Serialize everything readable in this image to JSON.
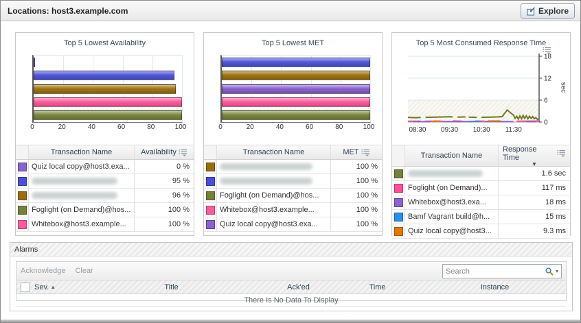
{
  "header": {
    "title": "Locations: host3.example.com",
    "explore_label": "Explore"
  },
  "panels": [
    {
      "title": "Top 5 Lowest Availability",
      "table": {
        "name_header": "Transaction Name",
        "value_header": "Availability",
        "sorted_desc": false,
        "rows": [
          {
            "color": "#8a63cc",
            "name": "Quiz local copy@host3.exa...",
            "redacted": false,
            "value": "0 %"
          },
          {
            "color": "#4a50d6",
            "name": "",
            "redacted": true,
            "value": "95 %"
          },
          {
            "color": "#9a6d10",
            "name": "",
            "redacted": true,
            "value": "96 %"
          },
          {
            "color": "#75803a",
            "name": "Foglight (on Demand)@hos...",
            "redacted": false,
            "value": "100 %"
          },
          {
            "color": "#ff5c9e",
            "name": "Whitebox@host3.example...",
            "redacted": false,
            "value": "100 %"
          }
        ]
      }
    },
    {
      "title": "Top 5 Lowest MET",
      "table": {
        "name_header": "Transaction Name",
        "value_header": "MET",
        "sorted_desc": false,
        "rows": [
          {
            "color": "#9a6d10",
            "name": "",
            "redacted": true,
            "value": "100 %"
          },
          {
            "color": "#4a50d6",
            "name": "",
            "redacted": true,
            "value": "100 %"
          },
          {
            "color": "#75803a",
            "name": "Foglight (on Demand)@hos...",
            "redacted": false,
            "value": "100 %"
          },
          {
            "color": "#ff5c9e",
            "name": "Whitebox@host3.example...",
            "redacted": false,
            "value": "100 %"
          },
          {
            "color": "#8a63cc",
            "name": "Quiz local copy@host3.exa...",
            "redacted": false,
            "value": "100 %"
          }
        ]
      }
    },
    {
      "title": "Top 5 Most Consumed Response Time",
      "table": {
        "name_header": "Transaction Name",
        "value_header": "Response Time",
        "sorted_desc": true,
        "rows": [
          {
            "color": "#75803a",
            "name": "",
            "redacted": true,
            "value": "1.6 sec"
          },
          {
            "color": "#ff4f96",
            "name": "Foglight (on Demand)...",
            "redacted": false,
            "value": "117 ms"
          },
          {
            "color": "#8a63cc",
            "name": "Whitebox@host3.exa...",
            "redacted": false,
            "value": "18 ms"
          },
          {
            "color": "#2a8fe8",
            "name": "Bamf Vagrant build@h...",
            "redacted": false,
            "value": "15 ms"
          },
          {
            "color": "#e5780a",
            "name": "Quiz local copy@host3...",
            "redacted": false,
            "value": "9.3 ms"
          }
        ]
      }
    }
  ],
  "chart_data": [
    {
      "type": "bar",
      "title": "Top 5 Lowest Availability",
      "orientation": "horizontal",
      "xlabel": "",
      "ylabel": "",
      "xlim": [
        0,
        100
      ],
      "ticks": [
        0,
        20,
        40,
        60,
        80,
        100
      ],
      "grid": true,
      "bars": [
        {
          "label": "Quiz local copy@host3.exa...",
          "value": 0,
          "color": "#8a63cc"
        },
        {
          "label": "(redacted)",
          "value": 95,
          "color": "#5156d8"
        },
        {
          "label": "(redacted)",
          "value": 96,
          "color": "#a07415"
        },
        {
          "label": "Whitebox@host3.example...",
          "value": 100,
          "color": "#ff5c9e"
        },
        {
          "label": "Foglight (on Demand)@hos...",
          "value": 100,
          "color": "#7d8840"
        }
      ]
    },
    {
      "type": "bar",
      "title": "Top 5 Lowest MET",
      "orientation": "horizontal",
      "xlabel": "",
      "ylabel": "",
      "xlim": [
        0,
        100
      ],
      "ticks": [
        0,
        20,
        40,
        60,
        80,
        100
      ],
      "grid": true,
      "bars": [
        {
          "label": "(redacted)",
          "value": 100,
          "color": "#5156d8"
        },
        {
          "label": "(redacted)",
          "value": 100,
          "color": "#a07415"
        },
        {
          "label": "Quiz local copy@host3.exa...",
          "value": 100,
          "color": "#8a63cc"
        },
        {
          "label": "Whitebox@host3.example...",
          "value": 100,
          "color": "#ff5c9e"
        },
        {
          "label": "Foglight (on Demand)@hos...",
          "value": 100,
          "color": "#7d8840"
        }
      ]
    },
    {
      "type": "line",
      "title": "Top 5 Most Consumed Response Time",
      "xlabel": "",
      "ylabel": "sec",
      "ylim": [
        0,
        18
      ],
      "yticks": [
        0,
        6,
        12,
        18
      ],
      "x_range_hours": [
        8.2,
        12.3
      ],
      "x_tick_hours": [
        8.5,
        9.5,
        10.5,
        11.5
      ],
      "x_tick_labels": [
        "08:30",
        "09:30",
        "10:30",
        "11:30"
      ],
      "threshold_band": [
        0,
        6
      ],
      "grid": true,
      "legend_position": "none",
      "series": [
        {
          "name": "(redacted) ~1.6 sec",
          "color": "#6b7a23",
          "width": 2,
          "segments": [
            [
              [
                8.2,
                1.25
              ],
              [
                8.45,
                1.2
              ],
              [
                8.6,
                1.25
              ]
            ],
            [
              [
                8.75,
                1.3
              ],
              [
                9.1,
                1.35
              ],
              [
                9.5,
                1.45
              ],
              [
                9.6,
                1.4
              ]
            ],
            [
              [
                9.75,
                1.35
              ],
              [
                10.0,
                1.4
              ]
            ],
            [
              [
                10.1,
                1.35
              ],
              [
                10.35,
                1.3
              ]
            ],
            [
              [
                10.5,
                1.3
              ],
              [
                10.8,
                1.35
              ],
              [
                11.0,
                1.4
              ],
              [
                11.15,
                1.5
              ],
              [
                11.3,
                3.3
              ],
              [
                11.5,
                1.9
              ],
              [
                11.55,
                1.0
              ],
              [
                11.6,
                1.6
              ],
              [
                11.65,
                0.8
              ],
              [
                11.7,
                1.7
              ],
              [
                11.75,
                0.9
              ],
              [
                11.8,
                1.8
              ],
              [
                11.85,
                1.0
              ],
              [
                11.9,
                1.7
              ],
              [
                11.95,
                0.9
              ],
              [
                12.0,
                1.6
              ],
              [
                12.05,
                1.0
              ],
              [
                12.1,
                1.5
              ],
              [
                12.15,
                0.9
              ],
              [
                12.2,
                1.2
              ],
              [
                12.25,
                0.7
              ],
              [
                12.3,
                1.0
              ]
            ]
          ]
        },
        {
          "name": "Foglight (on Demand) 117 ms",
          "color": "#ff4f96",
          "width": 2,
          "segments": [
            [
              [
                8.2,
                0.22
              ],
              [
                8.6,
                0.22
              ]
            ],
            [
              [
                8.75,
                0.25
              ],
              [
                9.3,
                0.22
              ]
            ],
            [
              [
                9.6,
                0.3
              ],
              [
                9.9,
                0.25
              ]
            ],
            [
              [
                10.3,
                0.28
              ],
              [
                10.6,
                0.22
              ]
            ],
            [
              [
                11.6,
                0.25
              ],
              [
                12.3,
                0.28
              ]
            ]
          ]
        },
        {
          "name": "Whitebox 18 ms",
          "color": "#8a63cc",
          "width": 2,
          "segments": [
            [
              [
                8.35,
                0.12
              ],
              [
                8.9,
                0.12
              ]
            ],
            [
              [
                9.3,
                0.15
              ],
              [
                10.2,
                0.12
              ]
            ],
            [
              [
                10.6,
                0.15
              ],
              [
                11.5,
                0.12
              ]
            ],
            [
              [
                11.9,
                0.12
              ],
              [
                12.2,
                0.1
              ]
            ]
          ]
        },
        {
          "name": "Quiz local copy 9.3 ms",
          "color": "#e5780a",
          "width": 2,
          "segments": [
            [
              [
                9.0,
                0.28
              ],
              [
                9.2,
                0.28
              ]
            ],
            [
              [
                10.7,
                0.3
              ],
              [
                11.1,
                0.3
              ]
            ]
          ]
        },
        {
          "name": "Bamf Vagrant build 15 ms",
          "color": "#2a8fe8",
          "width": 2,
          "segments": [
            [
              [
                10.15,
                0.18
              ],
              [
                10.5,
                0.18
              ]
            ]
          ]
        }
      ]
    }
  ],
  "alarms": {
    "title": "Alarms",
    "actions": {
      "acknowledge": "Acknowledge",
      "clear": "Clear"
    },
    "search_placeholder": "Search",
    "columns": {
      "sev": "Sev.",
      "title": "Title",
      "acked": "Ack'ed",
      "time": "Time",
      "instance": "Instance"
    },
    "empty_message": "There Is No Data To Display"
  }
}
